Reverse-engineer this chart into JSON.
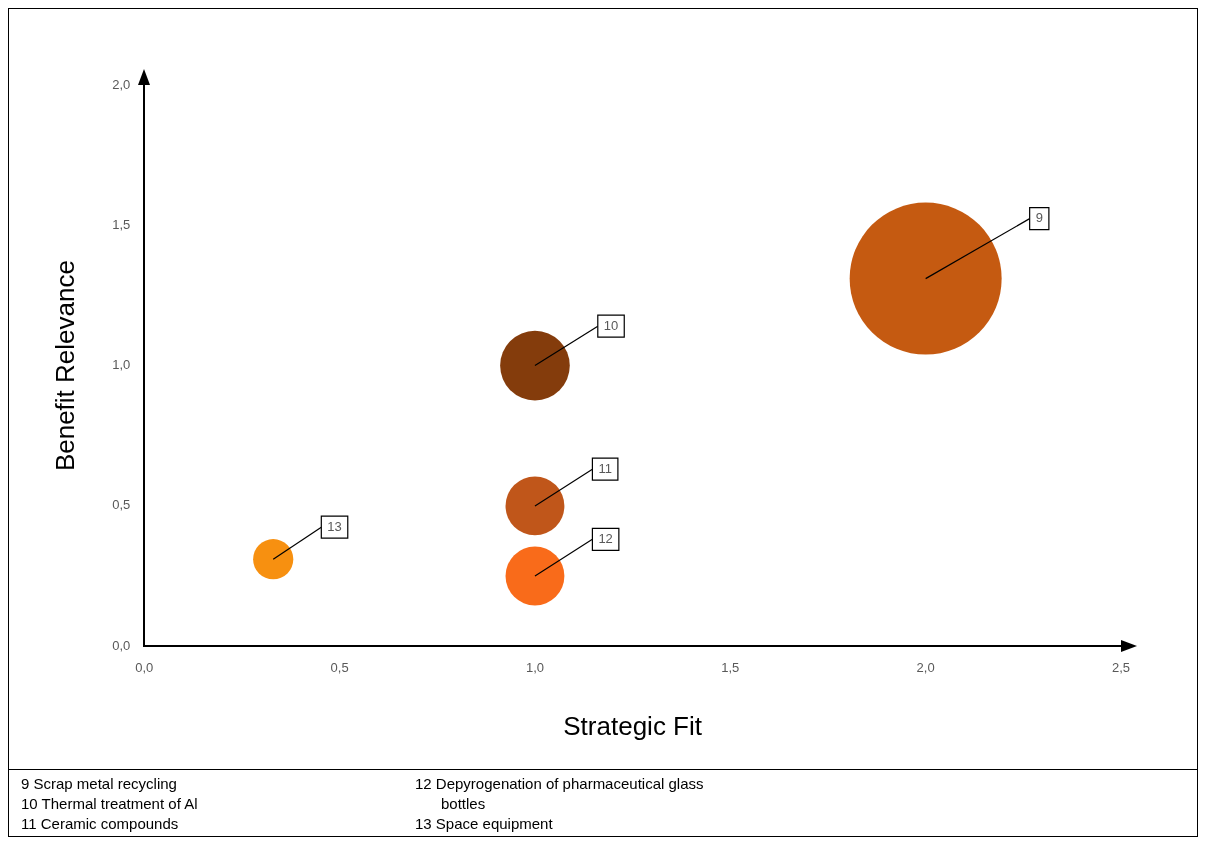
{
  "chart_data": {
    "type": "bubble",
    "xlabel": "Strategic Fit",
    "ylabel": "Benefit Relevance",
    "x": [
      2.0,
      1.0,
      1.0,
      1.0,
      0.33
    ],
    "values": [
      1.31,
      1.0,
      0.5,
      0.25,
      0.31
    ],
    "sizes": [
      1,
      0.21,
      0.15,
      0.15,
      0.07
    ],
    "colors": [
      "#c55a11",
      "#843c0c",
      "#c0561a",
      "#f96b1a",
      "#f79010"
    ],
    "xlim": [
      0,
      2.5
    ],
    "ylim": [
      0,
      2.0
    ],
    "xticks": [
      {
        "value": 0,
        "label": "0,0"
      },
      {
        "value": 0.5,
        "label": "0,5"
      },
      {
        "value": 1,
        "label": "1,0"
      },
      {
        "value": 1.5,
        "label": "1,5"
      },
      {
        "value": 2,
        "label": "2,0"
      },
      {
        "value": 2.5,
        "label": "2,5"
      }
    ],
    "yticks": [
      {
        "value": 0,
        "label": "0,0"
      },
      {
        "value": 0.5,
        "label": "0,5"
      },
      {
        "value": 1,
        "label": "1,0"
      },
      {
        "value": 1.5,
        "label": "1,5"
      },
      {
        "value": 2,
        "label": "2,0"
      }
    ],
    "grid": false,
    "legend": false,
    "annotations": [
      {
        "text": "9",
        "x": 2.0,
        "y": 1.31
      },
      {
        "text": "10",
        "x": 1.0,
        "y": 1.0
      },
      {
        "text": "11",
        "x": 1.0,
        "y": 0.5
      },
      {
        "text": "12",
        "x": 1.0,
        "y": 0.25
      },
      {
        "text": "13",
        "x": 0.33,
        "y": 0.31
      },
      "9 Scrap metal recycling",
      "10 Thermal treatment of Al",
      "11 Ceramic compounds",
      "12 Depyrogenation of pharmaceutical glass bottles",
      "13 Space equipment"
    ]
  }
}
